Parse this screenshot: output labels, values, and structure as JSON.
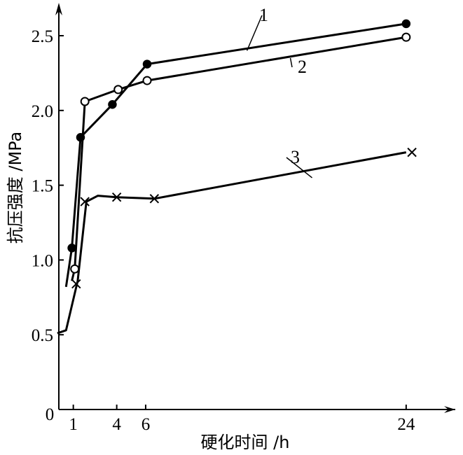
{
  "chart_data": {
    "type": "line",
    "title": "",
    "xlabel": "硬化时间 /h",
    "ylabel": "抗压强度 /MPa",
    "xlim": [
      0,
      26
    ],
    "ylim": [
      0,
      2.75
    ],
    "origin_label": "0",
    "xticks": [
      1,
      4,
      6,
      24
    ],
    "xtick_labels": [
      "1",
      "4",
      "6",
      "24"
    ],
    "yticks": [
      0.5,
      1.0,
      1.5,
      2.0,
      2.5
    ],
    "ytick_labels": [
      "0.5",
      "1.0",
      "1.5",
      "2.0",
      "2.5"
    ],
    "grid": false,
    "series": [
      {
        "name": "1",
        "marker": "filled-circle",
        "points": [
          [
            0.5,
            0.82
          ],
          [
            0.9,
            1.08
          ],
          [
            1.5,
            1.82
          ],
          [
            3.7,
            2.04
          ],
          [
            6.1,
            2.31
          ],
          [
            24,
            2.58
          ]
        ],
        "markers": [
          [
            0.9,
            1.08
          ],
          [
            1.5,
            1.82
          ],
          [
            3.7,
            2.04
          ],
          [
            6.1,
            2.31
          ],
          [
            24,
            2.58
          ]
        ]
      },
      {
        "name": "2",
        "marker": "open-circle",
        "points": [
          [
            0.9,
            0.86
          ],
          [
            1.1,
            0.94
          ],
          [
            1.8,
            2.06
          ],
          [
            4.1,
            2.14
          ],
          [
            6.1,
            2.2
          ],
          [
            24,
            2.49
          ]
        ],
        "markers": [
          [
            1.1,
            0.94
          ],
          [
            1.8,
            2.06
          ],
          [
            4.1,
            2.14
          ],
          [
            6.1,
            2.2
          ],
          [
            24,
            2.49
          ]
        ]
      },
      {
        "name": "3",
        "marker": "x",
        "points": [
          [
            -0.1,
            0.51
          ],
          [
            0.5,
            0.53
          ],
          [
            1.3,
            0.86
          ],
          [
            1.9,
            1.39
          ],
          [
            2.7,
            1.43
          ],
          [
            4.0,
            1.42
          ],
          [
            6.6,
            1.41
          ],
          [
            24,
            1.72
          ]
        ],
        "markers": [
          [
            1.2,
            0.84
          ],
          [
            1.8,
            1.39
          ],
          [
            4.0,
            1.42
          ],
          [
            6.6,
            1.41
          ],
          [
            24.4,
            1.72
          ]
        ]
      }
    ],
    "annotations": [
      {
        "text": "1",
        "anchor": [
          13.0,
          2.4
        ]
      },
      {
        "text": "2",
        "anchor": [
          16.0,
          2.35
        ]
      },
      {
        "text": "3",
        "anchor": [
          17.5,
          1.55
        ]
      }
    ]
  }
}
